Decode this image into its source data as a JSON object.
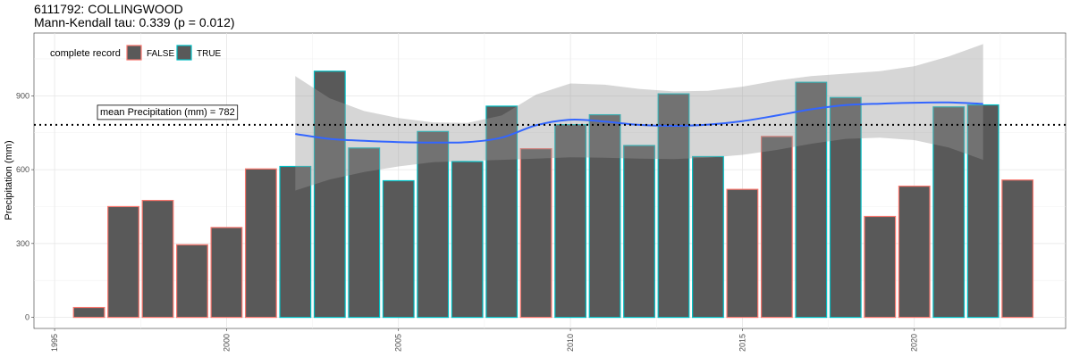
{
  "chart_data": {
    "type": "bar",
    "title": "6111792: COLLINGWOOD",
    "subtitle": "Mann-Kendall tau: 0.339 (p = 0.012)",
    "ylabel": "Precipitation (mm)",
    "xlim": [
      1994.4,
      2024.4
    ],
    "ylim": [
      -45,
      1155
    ],
    "x_ticks": [
      1995,
      2000,
      2005,
      2010,
      2015,
      2020
    ],
    "y_ticks": [
      0,
      300,
      600,
      900
    ],
    "legend": {
      "title": "complete record",
      "placement": "top-left",
      "entries": [
        {
          "label": "FALSE",
          "color": "#f8766d"
        },
        {
          "label": "TRUE",
          "color": "#00bfc4"
        }
      ]
    },
    "bar_fill": "#595959",
    "bars": [
      {
        "year": 1996,
        "value": 40,
        "complete": false
      },
      {
        "year": 1997,
        "value": 450,
        "complete": false
      },
      {
        "year": 1998,
        "value": 475,
        "complete": false
      },
      {
        "year": 1999,
        "value": 295,
        "complete": false
      },
      {
        "year": 2000,
        "value": 365,
        "complete": false
      },
      {
        "year": 2001,
        "value": 603,
        "complete": false
      },
      {
        "year": 2002,
        "value": 613,
        "complete": true
      },
      {
        "year": 2003,
        "value": 1000,
        "complete": true
      },
      {
        "year": 2004,
        "value": 688,
        "complete": true
      },
      {
        "year": 2005,
        "value": 555,
        "complete": true
      },
      {
        "year": 2006,
        "value": 755,
        "complete": true
      },
      {
        "year": 2007,
        "value": 633,
        "complete": true
      },
      {
        "year": 2008,
        "value": 858,
        "complete": true
      },
      {
        "year": 2009,
        "value": 685,
        "complete": false
      },
      {
        "year": 2010,
        "value": 783,
        "complete": true
      },
      {
        "year": 2011,
        "value": 823,
        "complete": true
      },
      {
        "year": 2012,
        "value": 698,
        "complete": true
      },
      {
        "year": 2013,
        "value": 908,
        "complete": true
      },
      {
        "year": 2014,
        "value": 653,
        "complete": true
      },
      {
        "year": 2015,
        "value": 520,
        "complete": false
      },
      {
        "year": 2016,
        "value": 735,
        "complete": false
      },
      {
        "year": 2017,
        "value": 955,
        "complete": true
      },
      {
        "year": 2018,
        "value": 893,
        "complete": true
      },
      {
        "year": 2019,
        "value": 410,
        "complete": false
      },
      {
        "year": 2020,
        "value": 533,
        "complete": false
      },
      {
        "year": 2021,
        "value": 855,
        "complete": true
      },
      {
        "year": 2022,
        "value": 863,
        "complete": true
      },
      {
        "year": 2023,
        "value": 558,
        "complete": false
      }
    ],
    "mean_line": {
      "value": 782,
      "label": "mean Precipitation (mm) = 782",
      "style": "dotted",
      "color": "#000000"
    },
    "smooth": {
      "color": "#3366ff",
      "band_color": "#999999",
      "x": [
        2002,
        2003,
        2004,
        2005,
        2006,
        2007,
        2008,
        2009,
        2010,
        2011,
        2012,
        2013,
        2014,
        2015,
        2016,
        2017,
        2018,
        2019,
        2020,
        2021,
        2022
      ],
      "y": [
        745,
        725,
        717,
        712,
        710,
        712,
        730,
        780,
        803,
        795,
        782,
        778,
        783,
        797,
        820,
        845,
        862,
        868,
        872,
        873,
        867
      ],
      "lower": [
        515,
        560,
        590,
        613,
        630,
        635,
        640,
        645,
        650,
        648,
        645,
        643,
        648,
        660,
        680,
        705,
        725,
        730,
        720,
        690,
        640
      ],
      "upper": [
        980,
        890,
        838,
        810,
        792,
        790,
        820,
        905,
        950,
        945,
        928,
        918,
        920,
        937,
        962,
        980,
        990,
        1000,
        1020,
        1060,
        1110
      ]
    }
  }
}
